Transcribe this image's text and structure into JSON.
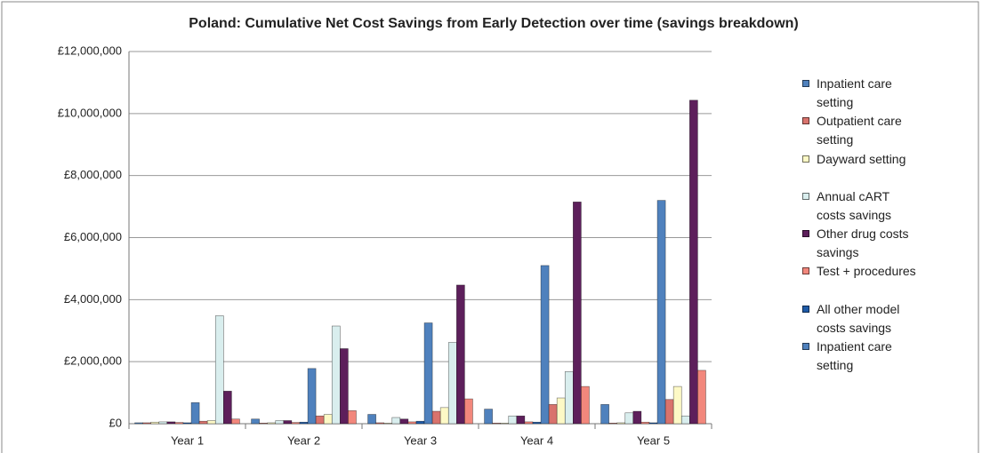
{
  "chart_data": {
    "type": "bar",
    "title": "Poland: Cumulative Net Cost Savings from Early Detection over time (savings breakdown)",
    "categories": [
      "Year 1",
      "Year 2",
      "Year 3",
      "Year 4",
      "Year 5"
    ],
    "series": [
      {
        "name": "Inpatient care setting",
        "color": "#4f81bd",
        "values": [
          30000,
          150000,
          300000,
          470000,
          620000
        ]
      },
      {
        "name": "Outpatient care setting",
        "color": "#d9736d",
        "values": [
          30000,
          20000,
          30000,
          20000,
          20000
        ]
      },
      {
        "name": "Dayward setting",
        "color": "#fdf9c6",
        "values": [
          50000,
          30000,
          20000,
          20000,
          30000
        ]
      },
      {
        "name": "Annual cART costs savings",
        "color": "#d9eeee",
        "values": [
          60000,
          100000,
          200000,
          250000,
          350000
        ]
      },
      {
        "name": "Other drug costs savings",
        "color": "#5d1f5b",
        "values": [
          60000,
          100000,
          150000,
          250000,
          400000
        ]
      },
      {
        "name": "Test + procedures",
        "color": "#f2877c",
        "values": [
          40000,
          40000,
          60000,
          60000,
          50000
        ]
      },
      {
        "name": "All other model costs savings",
        "color": "#1f5ba8",
        "values": [
          30000,
          50000,
          80000,
          50000,
          30000
        ]
      },
      {
        "name": "Inpatient care setting",
        "color": "#4f81bd",
        "values": [
          680000,
          1780000,
          3250000,
          5100000,
          7200000
        ]
      },
      {
        "color": "#d9736d",
        "values": [
          80000,
          250000,
          400000,
          620000,
          780000
        ]
      },
      {
        "color": "#fdf9c6",
        "values": [
          100000,
          300000,
          520000,
          830000,
          1200000
        ]
      },
      {
        "color": "#d9eeee",
        "values": [
          3480000,
          3150000,
          2620000,
          1680000,
          250000
        ]
      },
      {
        "color": "#5d1f5b",
        "values": [
          1050000,
          2420000,
          4470000,
          7150000,
          10430000
        ]
      },
      {
        "color": "#f2877c",
        "values": [
          150000,
          420000,
          800000,
          1200000,
          1720000
        ]
      }
    ],
    "ylim": [
      0,
      12000000
    ],
    "yticks": [
      {
        "value": 0,
        "label": "£0"
      },
      {
        "value": 2000000,
        "label": "£2,000,000"
      },
      {
        "value": 4000000,
        "label": "£4,000,000"
      },
      {
        "value": 6000000,
        "label": "£6,000,000"
      },
      {
        "value": 8000000,
        "label": "£8,000,000"
      },
      {
        "value": 10000000,
        "label": "£10,000,000"
      },
      {
        "value": 12000000,
        "label": "£12,000,000"
      }
    ],
    "grid": true,
    "legend": "right"
  }
}
